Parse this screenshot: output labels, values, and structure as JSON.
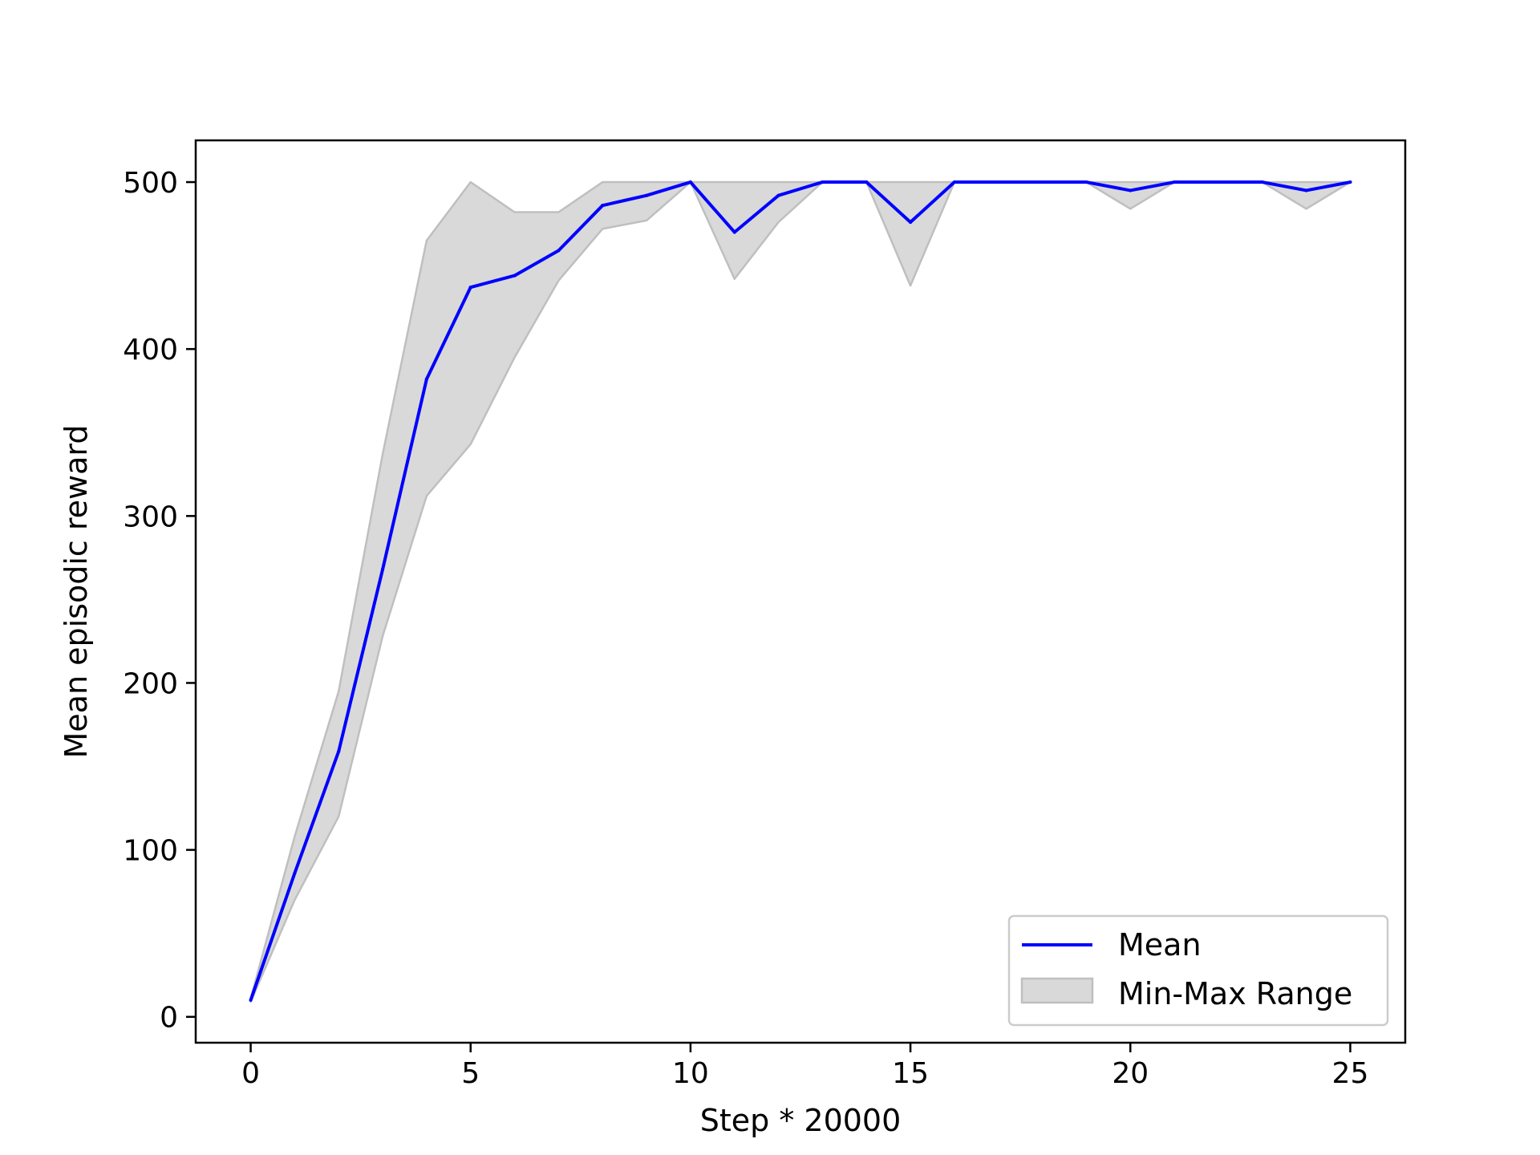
{
  "chart_data": {
    "type": "line",
    "title": "",
    "xlabel": "Step * 20000",
    "ylabel": "Mean episodic reward",
    "xlim": [
      -1.25,
      26.25
    ],
    "ylim": [
      -15.5,
      525
    ],
    "xticks": [
      0,
      5,
      10,
      15,
      20,
      25
    ],
    "yticks": [
      0,
      100,
      200,
      300,
      400,
      500
    ],
    "x": [
      0,
      1,
      2,
      3,
      4,
      5,
      6,
      7,
      8,
      9,
      10,
      11,
      12,
      13,
      14,
      15,
      16,
      17,
      18,
      19,
      20,
      21,
      22,
      23,
      24,
      25
    ],
    "series": [
      {
        "name": "Mean",
        "color": "#0000ff",
        "values": [
          10,
          86,
          159,
          268,
          382,
          437,
          444,
          459,
          486,
          492,
          500,
          470,
          492,
          500,
          500,
          476,
          500,
          500,
          500,
          500,
          495,
          500,
          500,
          500,
          495,
          500
        ]
      }
    ],
    "band": {
      "name": "Min-Max Range",
      "color": "#d9d9d9",
      "edge_color": "#bfbfbf",
      "min": [
        9,
        70,
        120,
        228,
        312,
        343,
        395,
        441,
        472,
        477,
        500,
        442,
        476,
        500,
        500,
        438,
        500,
        500,
        500,
        500,
        484,
        500,
        500,
        500,
        484,
        500
      ],
      "max": [
        11,
        108,
        195,
        337,
        465,
        500,
        482,
        482,
        500,
        500,
        500,
        500,
        500,
        500,
        500,
        500,
        500,
        500,
        500,
        500,
        500,
        500,
        500,
        500,
        500,
        500
      ]
    },
    "legend": {
      "position": "lower-right",
      "entries": [
        "Mean",
        "Min-Max Range"
      ]
    },
    "grid": false
  }
}
